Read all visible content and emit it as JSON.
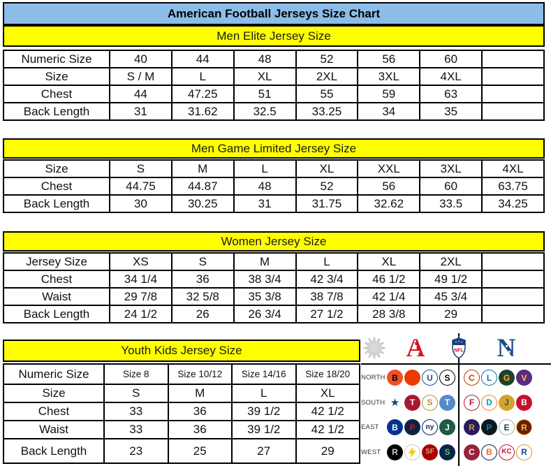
{
  "title": "American Football Jerseys Size Chart",
  "colors": {
    "title_bar_bg": "#8CBCE8",
    "section_header_bg": "#FFFF00",
    "table_border": "#000000",
    "text": "#000000",
    "afc_red": "#D6131C",
    "nfc_blue": "#1D4E89"
  },
  "tables": [
    {
      "name": "men-elite",
      "header": "Men Elite Jersey Size",
      "rows": [
        [
          "Numeric Size",
          "40",
          "44",
          "48",
          "52",
          "56",
          "60",
          ""
        ],
        [
          "Size",
          "S / M",
          "L",
          "XL",
          "2XL",
          "3XL",
          "4XL",
          ""
        ],
        [
          "Chest",
          "44",
          "47.25",
          "51",
          "55",
          "59",
          "63",
          ""
        ],
        [
          "Back Length",
          "31",
          "31.62",
          "32.5",
          "33.25",
          "34",
          "35",
          ""
        ]
      ]
    },
    {
      "name": "men-game-limited",
      "header": "Men Game Limited Jersey Size",
      "rows": [
        [
          "Size",
          "S",
          "M",
          "L",
          "XL",
          "XXL",
          "3XL",
          "4XL"
        ],
        [
          "Chest",
          "44.75",
          "44.87",
          "48",
          "52",
          "56",
          "60",
          "63.75"
        ],
        [
          "Back Length",
          "30",
          "30.25",
          "31",
          "31.75",
          "32.62",
          "33.5",
          "34.25"
        ]
      ]
    },
    {
      "name": "women",
      "header": "Women Jersey Size",
      "rows": [
        [
          "Jersey Size",
          "XS",
          "S",
          "M",
          "L",
          "XL",
          "2XL",
          ""
        ],
        [
          "Chest",
          "34 1/4",
          "36",
          "38 3/4",
          "42 3/4",
          "46 1/2",
          "49 1/2",
          ""
        ],
        [
          "Waist",
          "29 7/8",
          "32 5/8",
          "35 3/8",
          "38 7/8",
          "42 1/4",
          "45 3/4",
          ""
        ],
        [
          "Back Length",
          "24 1/2",
          "26",
          "26 3/4",
          "27 1/2",
          "28 3/8",
          "29",
          ""
        ]
      ]
    },
    {
      "name": "youth",
      "header": "Youth Kids Jersey Size",
      "rows": [
        [
          "Numeric Size",
          "Size 8",
          "Size 10/12",
          "Size 14/16",
          "Size 18/20"
        ],
        [
          "Size",
          "S",
          "M",
          "L",
          "XL"
        ],
        [
          "Chest",
          "33",
          "36",
          "39 1/2",
          "42 1/2"
        ],
        [
          "Waist",
          "33",
          "36",
          "39 1/2",
          "42 1/2"
        ],
        [
          "Back Length",
          "23",
          "25",
          "27",
          "29"
        ]
      ]
    }
  ],
  "logo_panel": {
    "header": {
      "afc_letter": "A",
      "nfc_letter": "N",
      "nfl_text": "NFL"
    },
    "rows": [
      {
        "label": "NORTH",
        "afc": [
          {
            "id": "bengals",
            "team": "Bengals",
            "mark": "B",
            "bg": "#F04E23",
            "fg": "#000000"
          },
          {
            "id": "browns",
            "team": "Browns",
            "mark": "",
            "bg": "#EB3C00",
            "fg": "#FFFFFF"
          },
          {
            "id": "colts",
            "team": "Colts",
            "mark": "U",
            "bg": "#FFFFFF",
            "fg": "#1B4F93",
            "border": "#1B4F93"
          },
          {
            "id": "steelers",
            "team": "Steelers",
            "mark": "S",
            "bg": "#FFFFFF",
            "fg": "#000000",
            "border": "#000000"
          }
        ],
        "nfc": [
          {
            "id": "bears",
            "team": "Bears",
            "mark": "C",
            "bg": "#FFFFFF",
            "fg": "#C83803",
            "border": "#C83803"
          },
          {
            "id": "lions",
            "team": "Lions",
            "mark": "L",
            "bg": "#FFFFFF",
            "fg": "#0076B6",
            "border": "#0076B6"
          },
          {
            "id": "packers",
            "team": "Packers",
            "mark": "G",
            "bg": "#20402F",
            "fg": "#FFB612"
          },
          {
            "id": "vikings",
            "team": "Vikings",
            "mark": "V",
            "bg": "#582C83",
            "fg": "#FFC62F"
          }
        ]
      },
      {
        "label": "SOUTH",
        "afc": [
          {
            "id": "cowboys-star",
            "team": "Cowboys",
            "mark": "★",
            "bg": "#FFFFFF",
            "fg": "#1D3E7B"
          },
          {
            "id": "texans",
            "team": "Texans",
            "mark": "T",
            "bg": "#A6192E",
            "fg": "#FFFFFF"
          },
          {
            "id": "saints",
            "team": "Saints",
            "mark": "S",
            "bg": "#FFFFFF",
            "fg": "#B2923F",
            "border": "#B2923F"
          },
          {
            "id": "titans",
            "team": "Titans",
            "mark": "T",
            "bg": "#5589C8",
            "fg": "#FFFFFF"
          }
        ],
        "nfc": [
          {
            "id": "falcons",
            "team": "Falcons",
            "mark": "F",
            "bg": "#FFFFFF",
            "fg": "#A71930",
            "border": "#A71930"
          },
          {
            "id": "dolphins",
            "team": "Dolphins",
            "mark": "D",
            "bg": "#FFFFFF",
            "fg": "#00A0AF",
            "border": "#F58220"
          },
          {
            "id": "jaguars",
            "team": "Jaguars",
            "mark": "J",
            "bg": "#D7A22A",
            "fg": "#006778"
          },
          {
            "id": "buccaneers",
            "team": "Buccaneers",
            "mark": "B",
            "bg": "#C8102E",
            "fg": "#FFFFFF"
          }
        ]
      },
      {
        "label": "EAST",
        "afc": [
          {
            "id": "bills",
            "team": "Bills",
            "mark": "B",
            "bg": "#00338D",
            "fg": "#FFFFFF"
          },
          {
            "id": "patriots",
            "team": "Patriots",
            "mark": "P",
            "bg": "#0A2342",
            "fg": "#C8102E"
          },
          {
            "id": "giants",
            "team": "Giants",
            "mark": "ny",
            "bg": "#FFFFFF",
            "fg": "#0B2265",
            "border": "#0B2265"
          },
          {
            "id": "jets",
            "team": "Jets",
            "mark": "J",
            "bg": "#1E5B41",
            "fg": "#FFFFFF"
          }
        ],
        "nfc": [
          {
            "id": "ravens",
            "team": "Ravens",
            "mark": "R",
            "bg": "#2A1A5E",
            "fg": "#C9A227"
          },
          {
            "id": "panthers",
            "team": "Panthers",
            "mark": "P",
            "bg": "#10181F",
            "fg": "#0085CA"
          },
          {
            "id": "eagles",
            "team": "Eagles",
            "mark": "E",
            "bg": "#FFFFFF",
            "fg": "#004C54",
            "border": "#A5ACAF"
          },
          {
            "id": "redskins",
            "team": "Redskins",
            "mark": "R",
            "bg": "#651D1B",
            "fg": "#FFC20E",
            "border": "#FFC20E"
          }
        ]
      },
      {
        "label": "WEST",
        "afc": [
          {
            "id": "raiders",
            "team": "Raiders",
            "mark": "R",
            "bg": "#000000",
            "fg": "#C4C9CC"
          },
          {
            "id": "chargers",
            "team": "Chargers",
            "mark": "bolt",
            "shape": "bolt",
            "bg": "#FFFFFF",
            "fg": "#FFC20E",
            "border": "#C4C9CC"
          },
          {
            "id": "49ers",
            "team": "49ers",
            "mark": "SF",
            "bg": "#AA0000",
            "fg": "#C9B074"
          },
          {
            "id": "seahawks",
            "team": "Seahawks",
            "mark": "S",
            "bg": "#03244D",
            "fg": "#69BE28"
          }
        ],
        "nfc": [
          {
            "id": "cardinals",
            "team": "Cardinals",
            "mark": "C",
            "bg": "#97233F",
            "fg": "#FFFFFF"
          },
          {
            "id": "broncos",
            "team": "Broncos",
            "mark": "B",
            "bg": "#FFFFFF",
            "fg": "#F2651B",
            "border": "#0A2343"
          },
          {
            "id": "chiefs",
            "team": "Chiefs",
            "mark": "KC",
            "bg": "#FFFFFF",
            "fg": "#C8102E",
            "border": "#C8102E"
          },
          {
            "id": "rams",
            "team": "Rams",
            "mark": "R",
            "bg": "#FFFFFF",
            "fg": "#1C3F94",
            "border": "#C9A227"
          }
        ]
      }
    ]
  }
}
